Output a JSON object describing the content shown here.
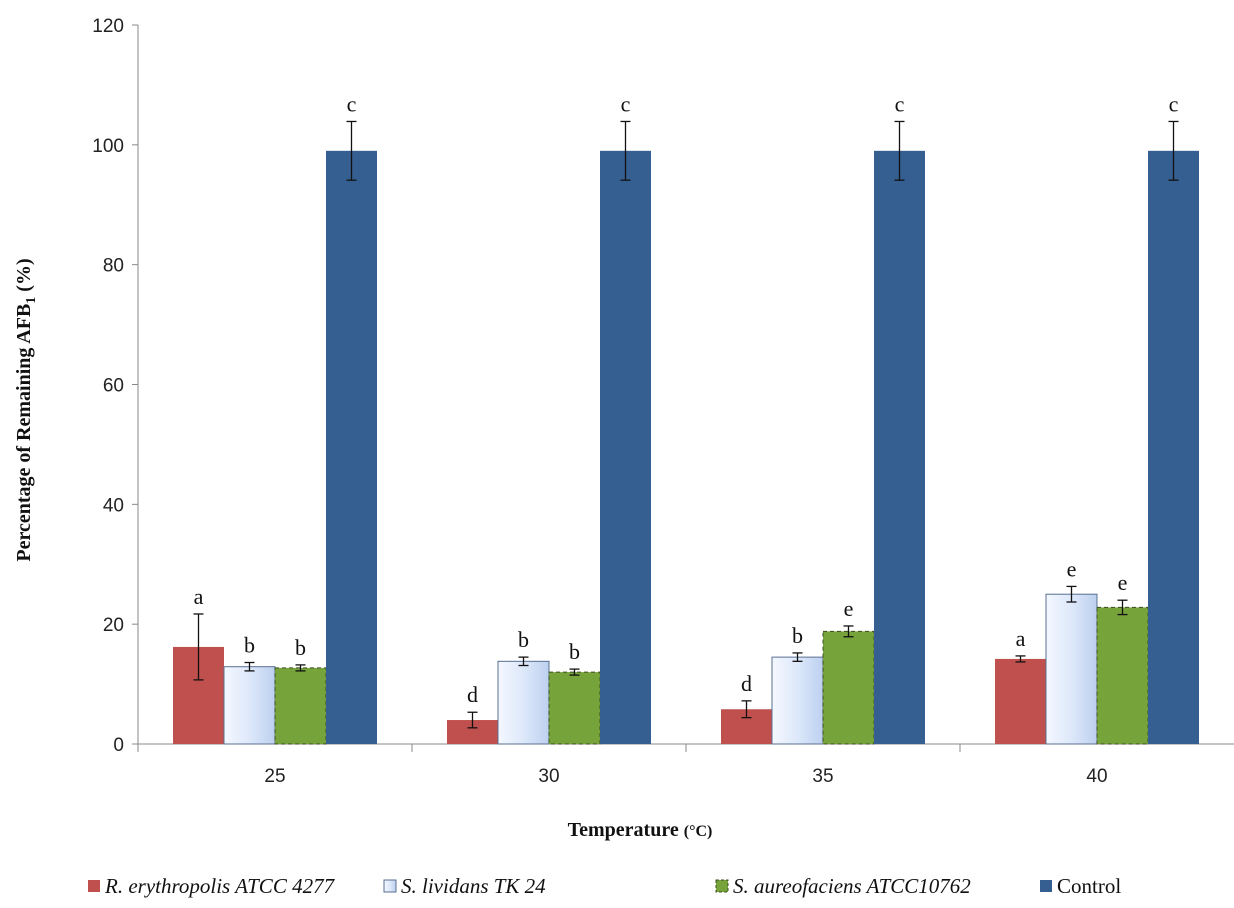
{
  "chart_data": {
    "type": "bar",
    "xlabel": "Temperature",
    "xlabel_unit": "(°C)",
    "ylabel_prefix": "Percentage of  Remaining AFB",
    "ylabel_subscript": "1",
    "ylabel_suffix": " (%)",
    "ylim": [
      0,
      120
    ],
    "yticks": [
      0,
      20,
      40,
      60,
      80,
      100,
      120
    ],
    "categories": [
      "25",
      "30",
      "35",
      "40"
    ],
    "legend_position": "bottom",
    "series": [
      {
        "name": "R. erythropolis ATCC 4277",
        "color": "#c0504d",
        "style": "solid",
        "values": [
          16.2,
          4.0,
          5.8,
          14.2
        ],
        "errors": [
          5.5,
          1.3,
          1.4,
          0.5
        ],
        "labels": [
          "a",
          "d",
          "d",
          "a"
        ]
      },
      {
        "name": "S. lividans TK 24",
        "color": "#dbe5f8",
        "style": "gradient",
        "values": [
          12.9,
          13.8,
          14.5,
          25.0
        ],
        "errors": [
          0.7,
          0.7,
          0.7,
          1.3
        ],
        "labels": [
          "b",
          "b",
          "b",
          "e"
        ]
      },
      {
        "name": "S. aureofaciens ATCC10762",
        "color": "#77a33b",
        "style": "dashed",
        "values": [
          12.7,
          12.0,
          18.8,
          22.8
        ],
        "errors": [
          0.5,
          0.5,
          0.9,
          1.2
        ],
        "labels": [
          "b",
          "b",
          "e",
          "e"
        ]
      },
      {
        "name": "Control",
        "color": "#365f91",
        "style": "solid",
        "values": [
          99.0,
          99.0,
          99.0,
          99.0
        ],
        "errors": [
          4.9,
          4.9,
          4.9,
          4.9
        ],
        "labels": [
          "c",
          "c",
          "c",
          "c"
        ]
      }
    ]
  }
}
